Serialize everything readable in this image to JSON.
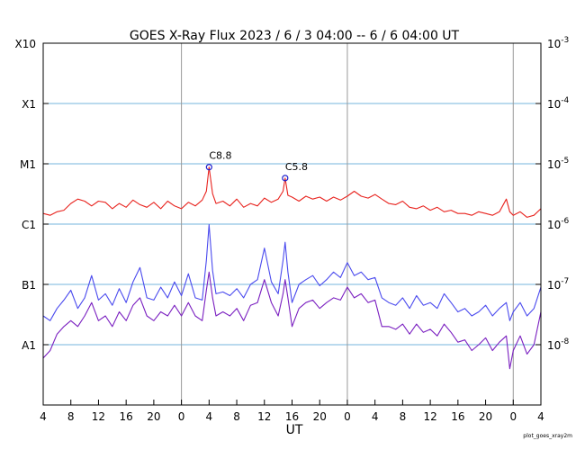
{
  "title": "GOES X-Ray Flux   2023 /  6 /  3   04:00 --  6 /  6   04:00   UT",
  "footer_note": "plot_goes_xray2m",
  "chart_data": {
    "type": "line",
    "xlabel": "UT",
    "x_tick_labels": [
      "4",
      "8",
      "12",
      "16",
      "20",
      "0",
      "4",
      "8",
      "12",
      "16",
      "20",
      "0",
      "4",
      "8",
      "12",
      "16",
      "20",
      "0",
      "4"
    ],
    "x_range_hours": [
      0,
      72
    ],
    "y_scale": "log",
    "ylim": [
      1e-09,
      0.001
    ],
    "left_axis_labels": [
      "A1",
      "B1",
      "C1",
      "M1",
      "X1",
      "X10"
    ],
    "left_axis_values": [
      1e-08,
      1e-07,
      1e-06,
      1e-05,
      0.0001,
      0.001
    ],
    "right_axis_labels": [
      {
        "base": "10",
        "exp": "-8"
      },
      {
        "base": "10",
        "exp": "-7"
      },
      {
        "base": "10",
        "exp": "-6"
      },
      {
        "base": "10",
        "exp": "-5"
      },
      {
        "base": "10",
        "exp": "-4"
      },
      {
        "base": "10",
        "exp": "-3"
      }
    ],
    "grid": {
      "class_lines": true,
      "day_boundaries_hours": [
        20,
        44,
        68
      ]
    },
    "colors": {
      "long": "#e8231e",
      "long_flagged": "#ff8c00",
      "short": "#4a4aee",
      "short_low": "#7a1fc0",
      "grid_h": "#74b4dc",
      "grid_v": "#999999",
      "marker": "#2020cc"
    },
    "series": [
      {
        "key": "long",
        "points": [
          [
            0,
            1.5e-06
          ],
          [
            1,
            1.4e-06
          ],
          [
            2,
            1.6e-06
          ],
          [
            3,
            1.7e-06
          ],
          [
            4,
            2.2e-06
          ],
          [
            5,
            2.6e-06
          ],
          [
            6,
            2.4e-06
          ],
          [
            7,
            2e-06
          ],
          [
            8,
            2.4e-06
          ],
          [
            9,
            2.3e-06
          ],
          [
            10,
            1.8e-06
          ],
          [
            11,
            2.2e-06
          ],
          [
            12,
            1.9e-06
          ],
          [
            13,
            2.5e-06
          ],
          [
            14,
            2.1e-06
          ],
          [
            15,
            1.9e-06
          ],
          [
            16,
            2.3e-06
          ],
          [
            17,
            1.8e-06
          ],
          [
            18,
            2.4e-06
          ],
          [
            19,
            2e-06
          ],
          [
            20,
            1.8e-06
          ],
          [
            21,
            2.3e-06
          ],
          [
            22,
            2e-06
          ],
          [
            23,
            2.5e-06
          ],
          [
            23.6,
            3.5e-06
          ],
          [
            24,
            8.8e-06
          ],
          [
            24.5,
            3.2e-06
          ],
          [
            25,
            2.2e-06
          ],
          [
            26,
            2.4e-06
          ],
          [
            27,
            2e-06
          ],
          [
            28,
            2.6e-06
          ],
          [
            29,
            1.9e-06
          ],
          [
            30,
            2.2e-06
          ],
          [
            31,
            2e-06
          ],
          [
            32,
            2.7e-06
          ],
          [
            33,
            2.3e-06
          ],
          [
            34,
            2.6e-06
          ],
          [
            34.7,
            3.5e-06
          ],
          [
            35,
            5.8e-06
          ],
          [
            35.4,
            3e-06
          ],
          [
            36,
            2.8e-06
          ],
          [
            37,
            2.4e-06
          ],
          [
            38,
            2.9e-06
          ],
          [
            39,
            2.6e-06
          ],
          [
            40,
            2.8e-06
          ],
          [
            41,
            2.4e-06
          ],
          [
            42,
            2.8e-06
          ],
          [
            43,
            2.5e-06
          ],
          [
            44,
            2.9e-06
          ],
          [
            45,
            3.5e-06
          ],
          [
            46,
            2.9e-06
          ],
          [
            47,
            2.7e-06
          ],
          [
            48,
            3.1e-06
          ],
          [
            49,
            2.6e-06
          ],
          [
            50,
            2.2e-06
          ],
          [
            51,
            2.1e-06
          ],
          [
            52,
            2.4e-06
          ],
          [
            53,
            1.9e-06
          ],
          [
            54,
            1.8e-06
          ],
          [
            55,
            2e-06
          ],
          [
            56,
            1.7e-06
          ],
          [
            57,
            1.9e-06
          ],
          [
            58,
            1.6e-06
          ],
          [
            59,
            1.7e-06
          ],
          [
            60,
            1.5e-06
          ],
          [
            61,
            1.5e-06
          ],
          [
            62,
            1.4e-06
          ],
          [
            63,
            1.6e-06
          ],
          [
            64,
            1.5e-06
          ],
          [
            65,
            1.4e-06
          ],
          [
            66,
            1.6e-06
          ],
          [
            67,
            2.6e-06
          ],
          [
            67.5,
            1.6e-06
          ],
          [
            68,
            1.4e-06
          ],
          [
            69,
            1.6e-06
          ],
          [
            70,
            1.3e-06
          ],
          [
            71,
            1.4e-06
          ],
          [
            72,
            1.8e-06
          ]
        ]
      },
      {
        "key": "short",
        "points": [
          [
            0,
            3e-08
          ],
          [
            1,
            2.5e-08
          ],
          [
            2,
            4e-08
          ],
          [
            3,
            5.5e-08
          ],
          [
            4,
            8e-08
          ],
          [
            5,
            4e-08
          ],
          [
            6,
            6e-08
          ],
          [
            7,
            1.4e-07
          ],
          [
            8,
            5.5e-08
          ],
          [
            9,
            7e-08
          ],
          [
            10,
            4.5e-08
          ],
          [
            11,
            8.5e-08
          ],
          [
            12,
            5e-08
          ],
          [
            13,
            1.1e-07
          ],
          [
            14,
            1.9e-07
          ],
          [
            15,
            6e-08
          ],
          [
            16,
            5.5e-08
          ],
          [
            17,
            9e-08
          ],
          [
            18,
            6e-08
          ],
          [
            19,
            1.1e-07
          ],
          [
            20,
            6.5e-08
          ],
          [
            21,
            1.5e-07
          ],
          [
            22,
            6e-08
          ],
          [
            23,
            5.5e-08
          ],
          [
            23.6,
            2.5e-07
          ],
          [
            24,
            9.8e-07
          ],
          [
            24.5,
            1.7e-07
          ],
          [
            25,
            7e-08
          ],
          [
            26,
            7.5e-08
          ],
          [
            27,
            6.5e-08
          ],
          [
            28,
            8.5e-08
          ],
          [
            29,
            6e-08
          ],
          [
            30,
            1e-07
          ],
          [
            31,
            1.2e-07
          ],
          [
            32,
            4e-07
          ],
          [
            33,
            1.1e-07
          ],
          [
            34,
            7e-08
          ],
          [
            34.7,
            2.5e-07
          ],
          [
            35,
            5e-07
          ],
          [
            35.4,
            1.6e-07
          ],
          [
            36,
            5e-08
          ],
          [
            37,
            1e-07
          ],
          [
            38,
            1.2e-07
          ],
          [
            39,
            1.4e-07
          ],
          [
            40,
            9.5e-08
          ],
          [
            41,
            1.2e-07
          ],
          [
            42,
            1.6e-07
          ],
          [
            43,
            1.3e-07
          ],
          [
            44,
            2.3e-07
          ],
          [
            45,
            1.4e-07
          ],
          [
            46,
            1.6e-07
          ],
          [
            47,
            1.2e-07
          ],
          [
            48,
            1.3e-07
          ],
          [
            49,
            6e-08
          ],
          [
            50,
            5e-08
          ],
          [
            51,
            4.5e-08
          ],
          [
            52,
            6e-08
          ],
          [
            53,
            4e-08
          ],
          [
            54,
            6.5e-08
          ],
          [
            55,
            4.5e-08
          ],
          [
            56,
            5e-08
          ],
          [
            57,
            4e-08
          ],
          [
            58,
            7e-08
          ],
          [
            59,
            5e-08
          ],
          [
            60,
            3.5e-08
          ],
          [
            61,
            4e-08
          ],
          [
            62,
            3e-08
          ],
          [
            63,
            3.5e-08
          ],
          [
            64,
            4.5e-08
          ],
          [
            65,
            3e-08
          ],
          [
            66,
            4e-08
          ],
          [
            67,
            5e-08
          ],
          [
            67.5,
            2.5e-08
          ],
          [
            68,
            3.5e-08
          ],
          [
            69,
            5e-08
          ],
          [
            70,
            3e-08
          ],
          [
            71,
            4e-08
          ],
          [
            72,
            9e-08
          ]
        ]
      },
      {
        "key": "short_low",
        "points": [
          [
            0,
            6e-09
          ],
          [
            1,
            8e-09
          ],
          [
            2,
            1.5e-08
          ],
          [
            3,
            2e-08
          ],
          [
            4,
            2.5e-08
          ],
          [
            5,
            2e-08
          ],
          [
            6,
            3e-08
          ],
          [
            7,
            5e-08
          ],
          [
            8,
            2.5e-08
          ],
          [
            9,
            3e-08
          ],
          [
            10,
            2e-08
          ],
          [
            11,
            3.5e-08
          ],
          [
            12,
            2.5e-08
          ],
          [
            13,
            4.5e-08
          ],
          [
            14,
            6e-08
          ],
          [
            15,
            3e-08
          ],
          [
            16,
            2.5e-08
          ],
          [
            17,
            3.5e-08
          ],
          [
            18,
            3e-08
          ],
          [
            19,
            4.5e-08
          ],
          [
            20,
            3e-08
          ],
          [
            21,
            5e-08
          ],
          [
            22,
            3e-08
          ],
          [
            23,
            2.5e-08
          ],
          [
            23.6,
            8e-08
          ],
          [
            24,
            1.6e-07
          ],
          [
            24.5,
            6e-08
          ],
          [
            25,
            3e-08
          ],
          [
            26,
            3.5e-08
          ],
          [
            27,
            3e-08
          ],
          [
            28,
            4e-08
          ],
          [
            29,
            2.5e-08
          ],
          [
            30,
            4.5e-08
          ],
          [
            31,
            5e-08
          ],
          [
            32,
            1.2e-07
          ],
          [
            33,
            5e-08
          ],
          [
            34,
            3e-08
          ],
          [
            34.7,
            7e-08
          ],
          [
            35,
            1.2e-07
          ],
          [
            35.4,
            6e-08
          ],
          [
            36,
            2e-08
          ],
          [
            37,
            4e-08
          ],
          [
            38,
            5e-08
          ],
          [
            39,
            5.5e-08
          ],
          [
            40,
            4e-08
          ],
          [
            41,
            5e-08
          ],
          [
            42,
            6e-08
          ],
          [
            43,
            5.5e-08
          ],
          [
            44,
            9e-08
          ],
          [
            45,
            6e-08
          ],
          [
            46,
            7e-08
          ],
          [
            47,
            5e-08
          ],
          [
            48,
            5.5e-08
          ],
          [
            49,
            2e-08
          ],
          [
            50,
            2e-08
          ],
          [
            51,
            1.8e-08
          ],
          [
            52,
            2.2e-08
          ],
          [
            53,
            1.5e-08
          ],
          [
            54,
            2.2e-08
          ],
          [
            55,
            1.6e-08
          ],
          [
            56,
            1.8e-08
          ],
          [
            57,
            1.4e-08
          ],
          [
            58,
            2.2e-08
          ],
          [
            59,
            1.6e-08
          ],
          [
            60,
            1.1e-08
          ],
          [
            61,
            1.2e-08
          ],
          [
            62,
            8e-09
          ],
          [
            63,
            1e-08
          ],
          [
            64,
            1.3e-08
          ],
          [
            65,
            8e-09
          ],
          [
            66,
            1.1e-08
          ],
          [
            67,
            1.4e-08
          ],
          [
            67.5,
            4e-09
          ],
          [
            68,
            8e-09
          ],
          [
            69,
            1.4e-08
          ],
          [
            70,
            7e-09
          ],
          [
            71,
            1e-08
          ],
          [
            72,
            3.5e-08
          ]
        ]
      }
    ],
    "annotations": [
      {
        "label": "C8.8",
        "x": 24,
        "y": 8.8e-06
      },
      {
        "label": "C5.8",
        "x": 35,
        "y": 5.8e-06
      }
    ]
  }
}
